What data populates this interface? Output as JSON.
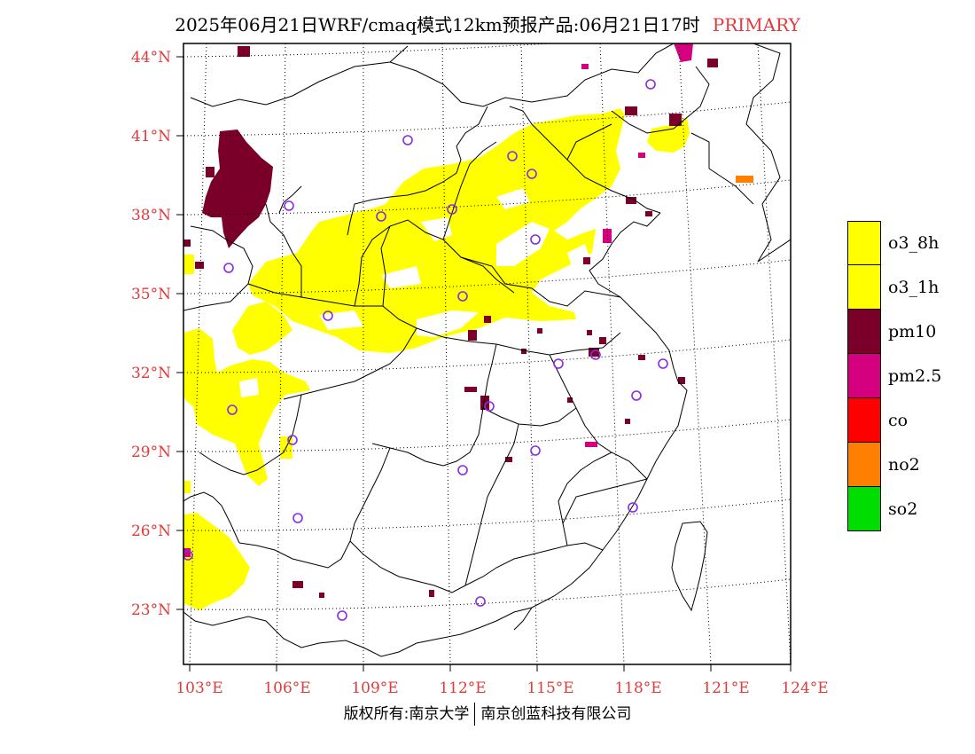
{
  "title": {
    "text": "2025年06月21日WRF/cmaq模式12km预报产品:06月21日17时",
    "tag": "PRIMARY"
  },
  "map": {
    "lat_labels": [
      "44°N",
      "41°N",
      "38°N",
      "35°N",
      "32°N",
      "29°N",
      "26°N",
      "23°N"
    ],
    "lon_labels": [
      "103°E",
      "106°E",
      "109°E",
      "112°E",
      "115°E",
      "118°E",
      "121°E",
      "124°E"
    ],
    "marker_color": "#8a2be2",
    "frame_color": "#000000"
  },
  "legend": {
    "items": [
      {
        "label": "o3_8h",
        "color": "#ffff00"
      },
      {
        "label": "o3_1h",
        "color": "#ffff00"
      },
      {
        "label": "pm10",
        "color": "#7b0029"
      },
      {
        "label": "pm2.5",
        "color": "#d40080"
      },
      {
        "label": "co",
        "color": "#ff0000"
      },
      {
        "label": "no2",
        "color": "#ff8000"
      },
      {
        "label": "so2",
        "color": "#00dd00"
      }
    ]
  },
  "footer": {
    "left": "版权所有:南京大学",
    "right": "南京创蓝科技有限公司"
  }
}
